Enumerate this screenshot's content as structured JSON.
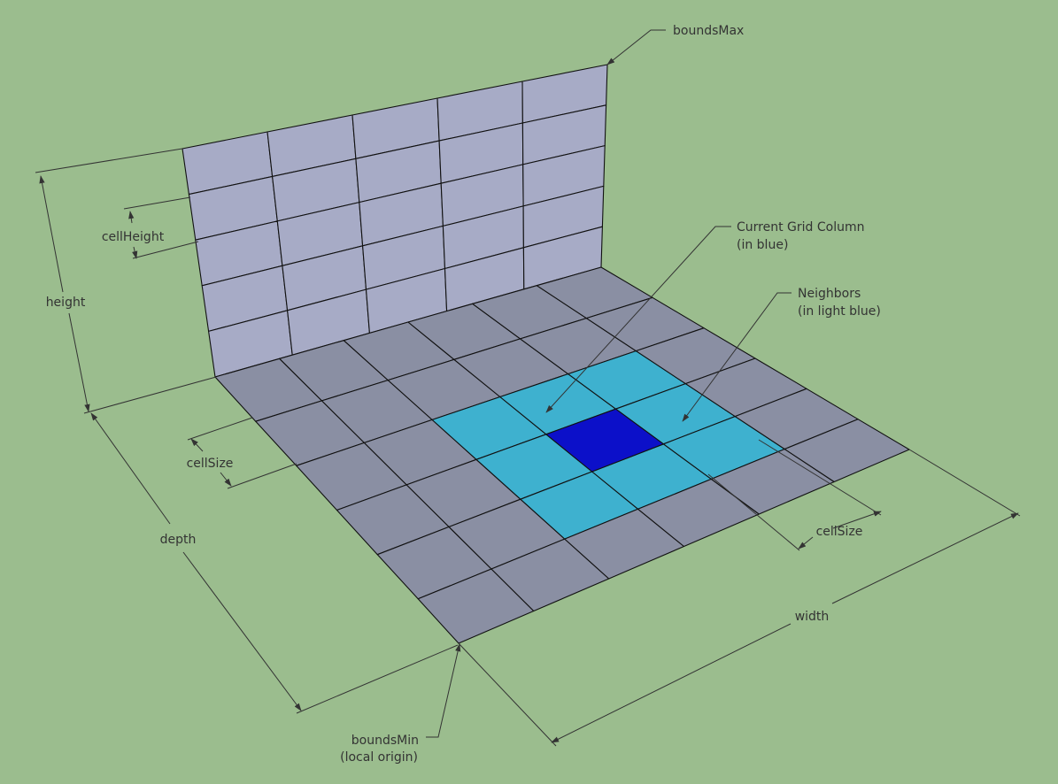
{
  "labels": {
    "bounds_max": "boundsMax",
    "bounds_min_line1": "boundsMin",
    "bounds_min_line2": "(local origin)",
    "height": "height",
    "cell_height": "cellHeight",
    "cell_size_left": "cellSize",
    "cell_size_right": "cellSize",
    "depth": "depth",
    "width": "width",
    "current_column_line1": "Current Grid Column",
    "current_column_line2": "(in blue)",
    "neighbors_line1": "Neighbors",
    "neighbors_line2": "(in light blue)"
  },
  "grid": {
    "floor_columns": 6,
    "floor_rows": 6,
    "wall_columns": 5,
    "wall_rows": 5,
    "current_column": [
      3,
      3
    ],
    "neighbors": [
      [
        2,
        2
      ],
      [
        2,
        3
      ],
      [
        2,
        4
      ],
      [
        3,
        2
      ],
      [
        3,
        4
      ],
      [
        4,
        2
      ],
      [
        4,
        3
      ],
      [
        4,
        4
      ]
    ]
  },
  "colors": {
    "background": "#9bbd8e",
    "floor_cell": "#8a8fa3",
    "wall_cell": "#a7abc6",
    "neighbor_cell": "#3eb1cf",
    "current_cell": "#0c10c9"
  }
}
